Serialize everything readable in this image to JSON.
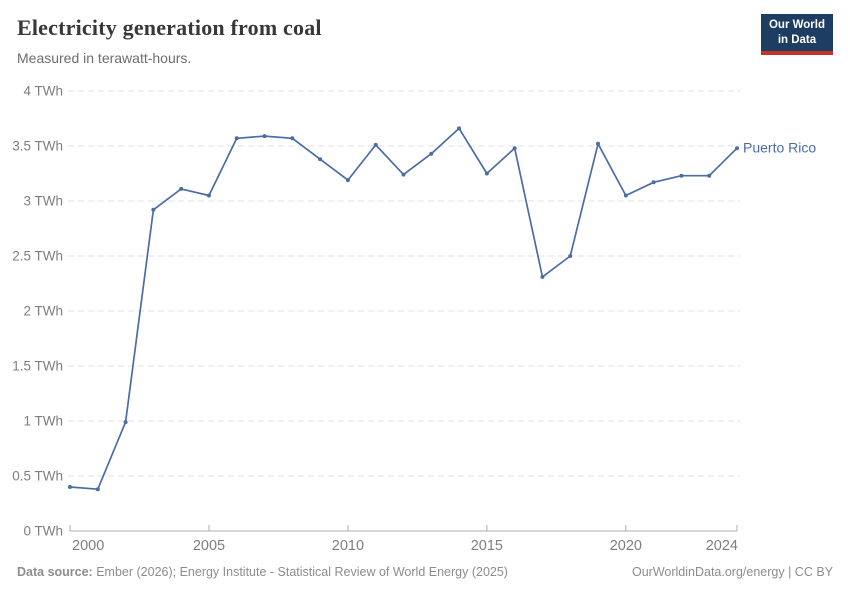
{
  "header": {
    "title": "Electricity generation from coal",
    "subtitle": "Measured in terawatt-hours."
  },
  "logo": {
    "line1": "Our World",
    "line2": "in Data",
    "bg_color": "#1d3d63",
    "bar_color": "#c5312b"
  },
  "chart_data": {
    "type": "line",
    "title": "Electricity generation from coal",
    "ylabel": "terawatt-hours",
    "xlabel": "",
    "grid": true,
    "legend_position": "end-of-line",
    "xlim": [
      2000,
      2024
    ],
    "ylim": [
      0,
      4
    ],
    "x": [
      2000,
      2001,
      2002,
      2003,
      2004,
      2005,
      2006,
      2007,
      2008,
      2009,
      2010,
      2011,
      2012,
      2013,
      2014,
      2015,
      2016,
      2017,
      2018,
      2019,
      2020,
      2021,
      2022,
      2023,
      2024
    ],
    "series": [
      {
        "name": "Puerto Rico",
        "color": "#4c6ca4",
        "values": [
          0.4,
          0.38,
          0.99,
          2.92,
          3.11,
          3.05,
          3.57,
          3.59,
          3.57,
          3.38,
          3.19,
          3.51,
          3.24,
          3.43,
          3.66,
          3.25,
          3.48,
          2.31,
          2.5,
          3.52,
          3.05,
          3.17,
          3.23,
          3.23,
          3.48
        ]
      }
    ],
    "x_ticks": {
      "values": [
        2000,
        2005,
        2010,
        2015,
        2020,
        2024
      ],
      "labels": [
        "2000",
        "2005",
        "2010",
        "2015",
        "2020",
        "2024"
      ]
    },
    "y_ticks": {
      "values": [
        0,
        0.5,
        1,
        1.5,
        2,
        2.5,
        3,
        3.5,
        4
      ],
      "labels": [
        "0 TWh",
        "0.5 TWh",
        "1 TWh",
        "1.5 TWh",
        "2 TWh",
        "2.5 TWh",
        "3 TWh",
        "3.5 TWh",
        "4 TWh"
      ]
    }
  },
  "colors": {
    "gridline": "#e2e2e2",
    "axis": "#aeaeae",
    "tick_label": "#7e7e7e",
    "title": "#383838",
    "subtitle": "#6d6d6d",
    "footer": "#8d8d8d"
  },
  "footer": {
    "source_label": "Data source:",
    "source_text": " Ember (2026); Energy Institute - Statistical Review of World Energy (2025)",
    "credit": "OurWorldinData.org/energy | CC BY"
  }
}
